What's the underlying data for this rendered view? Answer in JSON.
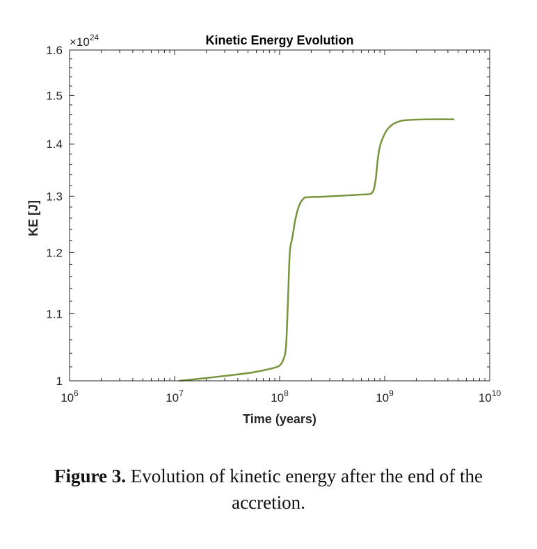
{
  "chart_data": {
    "type": "line",
    "title": "Kinetic Energy Evolution",
    "xlabel": "Time (years)",
    "ylabel": "KE [J]",
    "xscale": "log",
    "yscale": "log",
    "xlim": [
      1000000,
      10000000000
    ],
    "ylim": [
      1.0,
      1.6
    ],
    "y_multiplier": "×10^24",
    "y_multiplier_base": "×10",
    "y_multiplier_exp": "24",
    "xticks": [
      {
        "value": 1000000,
        "base": "10",
        "exp": "6"
      },
      {
        "value": 10000000,
        "base": "10",
        "exp": "7"
      },
      {
        "value": 100000000,
        "base": "10",
        "exp": "8"
      },
      {
        "value": 1000000000,
        "base": "10",
        "exp": "9"
      },
      {
        "value": 10000000000,
        "base": "10",
        "exp": "10"
      }
    ],
    "yticks": [
      {
        "value": 1.0,
        "label": "1"
      },
      {
        "value": 1.1,
        "label": "1.1"
      },
      {
        "value": 1.2,
        "label": "1.2"
      },
      {
        "value": 1.3,
        "label": "1.3"
      },
      {
        "value": 1.4,
        "label": "1.4"
      },
      {
        "value": 1.5,
        "label": "1.5"
      },
      {
        "value": 1.6,
        "label": "1.6"
      }
    ],
    "grid": false,
    "series": [
      {
        "name": "KE",
        "color": "#77933c",
        "x": [
          11000000,
          15000000,
          20000000,
          30000000,
          50000000,
          70000000,
          90000000,
          100000000,
          108000000,
          115000000,
          120000000,
          125000000,
          132000000,
          142000000,
          155000000,
          170000000,
          185000000,
          250000000,
          400000000,
          600000000,
          720000000,
          780000000,
          820000000,
          860000000,
          900000000,
          950000000,
          1050000000,
          1200000000,
          1450000000,
          1800000000,
          2500000000,
          4600000000
        ],
        "y": [
          1.0,
          1.002,
          1.004,
          1.007,
          1.011,
          1.015,
          1.019,
          1.022,
          1.03,
          1.05,
          1.12,
          1.2,
          1.225,
          1.26,
          1.285,
          1.296,
          1.298,
          1.299,
          1.301,
          1.303,
          1.304,
          1.31,
          1.33,
          1.37,
          1.395,
          1.41,
          1.428,
          1.44,
          1.447,
          1.449,
          1.45,
          1.45
        ]
      }
    ]
  },
  "caption": {
    "label": "Figure 3.",
    "line1": " Evolution of kinetic energy after the end of the",
    "line2": "accretion."
  }
}
